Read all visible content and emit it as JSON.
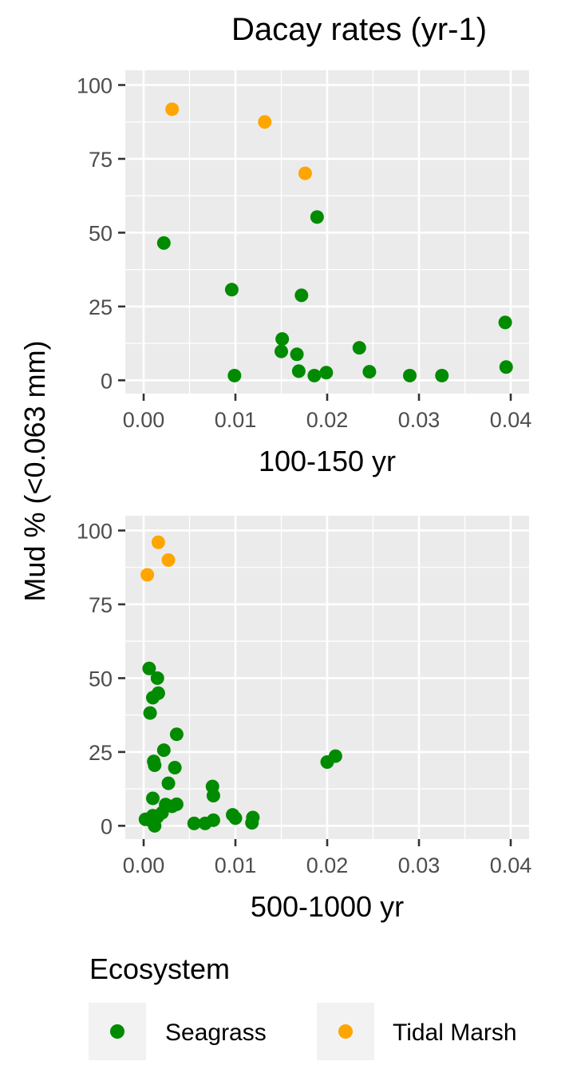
{
  "title": "Dacay rates (yr-1)",
  "ylabel": "Mud % (<0.063 mm)",
  "legend": {
    "title": "Ecosystem",
    "placement": "bottom",
    "items": [
      {
        "label": "Seagrass",
        "color": "#008B00"
      },
      {
        "label": "Tidal Marsh",
        "color": "#FFA500"
      }
    ]
  },
  "colors": {
    "panel_bg": "#EBEBEB",
    "grid": "#FFFFFF",
    "tick_text": "#4D4D4D"
  },
  "chart_data": [
    {
      "type": "scatter",
      "xlabel": "100-150 yr",
      "xlim": [
        -0.002,
        0.042
      ],
      "ylim": [
        -4.5,
        105
      ],
      "xticks": [
        0,
        0.01,
        0.02,
        0.03,
        0.04
      ],
      "xtick_labels": [
        "0.00",
        "0.01",
        "0.02",
        "0.03",
        "0.04"
      ],
      "yticks": [
        0,
        25,
        50,
        75,
        100
      ],
      "ytick_labels": [
        "0",
        "25",
        "50",
        "75",
        "100"
      ],
      "grid": true,
      "series": [
        {
          "name": "Seagrass",
          "color": "#008B00",
          "points": [
            [
              0.0022,
              46.5
            ],
            [
              0.0096,
              30.7
            ],
            [
              0.0099,
              1.6
            ],
            [
              0.0151,
              14.0
            ],
            [
              0.015,
              9.8
            ],
            [
              0.0167,
              8.8
            ],
            [
              0.0169,
              3.1
            ],
            [
              0.0172,
              28.8
            ],
            [
              0.0186,
              1.6
            ],
            [
              0.0189,
              55.3
            ],
            [
              0.0199,
              2.6
            ],
            [
              0.0235,
              11.0
            ],
            [
              0.0246,
              2.9
            ],
            [
              0.029,
              1.6
            ],
            [
              0.0325,
              1.6
            ],
            [
              0.0394,
              19.6
            ],
            [
              0.0395,
              4.5
            ]
          ]
        },
        {
          "name": "Tidal Marsh",
          "color": "#FFA500",
          "points": [
            [
              0.0031,
              91.8
            ],
            [
              0.0132,
              87.5
            ],
            [
              0.0176,
              70.1
            ]
          ]
        }
      ]
    },
    {
      "type": "scatter",
      "xlabel": "500-1000 yr",
      "xlim": [
        -0.002,
        0.042
      ],
      "ylim": [
        -4.5,
        105
      ],
      "xticks": [
        0,
        0.01,
        0.02,
        0.03,
        0.04
      ],
      "xtick_labels": [
        "0.00",
        "0.01",
        "0.02",
        "0.03",
        "0.04"
      ],
      "yticks": [
        0,
        25,
        50,
        75,
        100
      ],
      "ytick_labels": [
        "0",
        "25",
        "50",
        "75",
        "100"
      ],
      "grid": true,
      "series": [
        {
          "name": "Seagrass",
          "color": "#008B00",
          "points": [
            [
              0.0006,
              53.3
            ],
            [
              0.0015,
              50.0
            ],
            [
              0.0016,
              44.9
            ],
            [
              0.001,
              43.4
            ],
            [
              0.0007,
              38.2
            ],
            [
              0.0036,
              31.0
            ],
            [
              0.0022,
              25.6
            ],
            [
              0.0011,
              21.8
            ],
            [
              0.0012,
              20.5
            ],
            [
              0.0034,
              19.7
            ],
            [
              0.0027,
              14.4
            ],
            [
              0.001,
              9.3
            ],
            [
              0.0036,
              7.3
            ],
            [
              0.0024,
              7.2
            ],
            [
              0.0031,
              6.6
            ],
            [
              0.002,
              4.4
            ],
            [
              0.001,
              3.4
            ],
            [
              0.0015,
              3.0
            ],
            [
              0.0002,
              2.2
            ],
            [
              0.0008,
              1.8
            ],
            [
              0.0012,
              0.0
            ],
            [
              0.0055,
              0.8
            ],
            [
              0.0067,
              0.8
            ],
            [
              0.0076,
              1.9
            ],
            [
              0.0075,
              13.3
            ],
            [
              0.0076,
              10.2
            ],
            [
              0.0097,
              3.7
            ],
            [
              0.01,
              2.6
            ],
            [
              0.0119,
              2.8
            ],
            [
              0.0118,
              1.0
            ],
            [
              0.02,
              21.6
            ],
            [
              0.0209,
              23.6
            ]
          ]
        },
        {
          "name": "Tidal Marsh",
          "color": "#FFA500",
          "points": [
            [
              0.0004,
              85.0
            ],
            [
              0.0016,
              96.0
            ],
            [
              0.0027,
              90.0
            ]
          ]
        }
      ]
    }
  ]
}
